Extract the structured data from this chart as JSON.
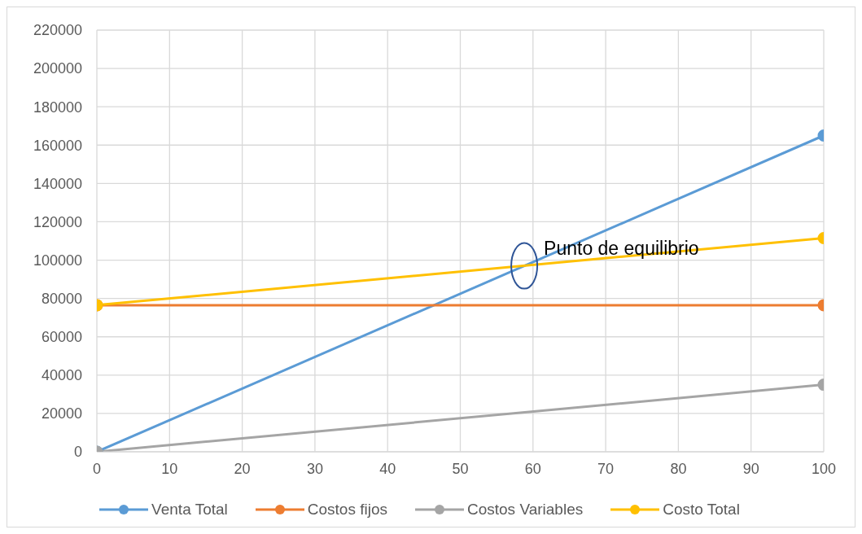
{
  "chart_data": {
    "type": "line",
    "x": [
      0,
      100
    ],
    "series": [
      {
        "name": "Venta Total",
        "color": "#5b9bd5",
        "values": [
          0,
          165000
        ]
      },
      {
        "name": "Costos fijos",
        "color": "#ed7d31",
        "values": [
          76500,
          76500
        ]
      },
      {
        "name": "Costos Variables",
        "color": "#a5a5a5",
        "values": [
          0,
          35000
        ]
      },
      {
        "name": "Costo Total",
        "color": "#ffc000",
        "values": [
          76500,
          111500
        ]
      }
    ],
    "xlim": [
      0,
      100
    ],
    "xticks": [
      0,
      10,
      20,
      30,
      40,
      50,
      60,
      70,
      80,
      90,
      100
    ],
    "ylim": [
      0,
      220000
    ],
    "yticks": [
      0,
      20000,
      40000,
      60000,
      80000,
      100000,
      120000,
      140000,
      160000,
      180000,
      200000,
      220000
    ],
    "grid": true,
    "legend": "bottom",
    "marker": "circle",
    "line_style": "solid",
    "annotations": [
      {
        "text": "Punto de equilibrio",
        "x": 58.8,
        "y": 97000
      }
    ]
  }
}
